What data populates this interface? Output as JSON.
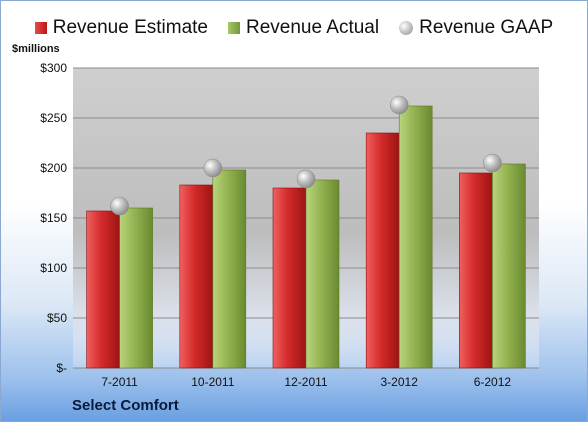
{
  "legend": {
    "estimate": "Revenue Estimate",
    "actual": "Revenue Actual",
    "gaap": "Revenue GAAP"
  },
  "units_label": "$millions",
  "footer_label": "Select Comfort",
  "colors": {
    "estimate": "#c62828",
    "actual": "#8aab4a",
    "gaap": "#b8b8b8"
  },
  "chart_data": {
    "type": "bar",
    "categories": [
      "7-2011",
      "10-2011",
      "12-2011",
      "3-2012",
      "6-2012"
    ],
    "series": [
      {
        "name": "Revenue Estimate",
        "values": [
          157,
          183,
          180,
          235,
          195
        ]
      },
      {
        "name": "Revenue Actual",
        "values": [
          160,
          198,
          188,
          262,
          204
        ]
      },
      {
        "name": "Revenue GAAP",
        "type": "scatter",
        "values": [
          162,
          200,
          189,
          263,
          205
        ]
      }
    ],
    "ylim": [
      0,
      300
    ],
    "y_ticks": [
      0,
      50,
      100,
      150,
      200,
      250,
      300
    ],
    "y_tick_labels": [
      "$-",
      "$50",
      "$100",
      "$150",
      "$200",
      "$250",
      "$300"
    ],
    "ylabel": "$millions",
    "xlabel": "",
    "grid": true,
    "legend_position": "top"
  }
}
